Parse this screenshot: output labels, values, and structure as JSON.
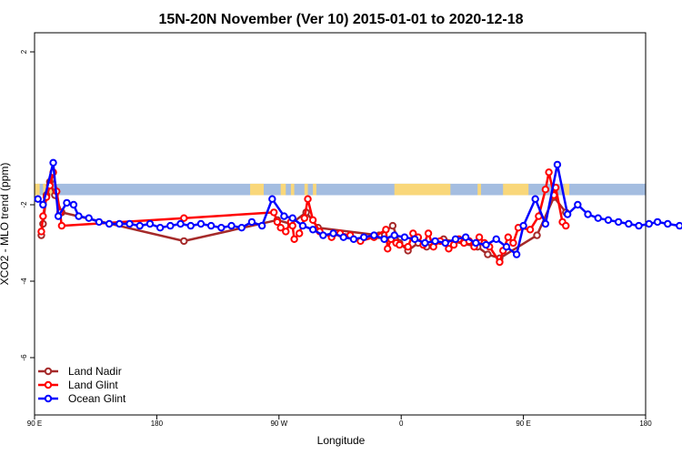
{
  "chart_data": {
    "type": "line",
    "title": "15N-20N November (Ver 10)   2015-01-01 to 2020-12-18",
    "xlabel": "Longitude",
    "ylabel": "XCO2 - MLO trend (ppm)",
    "xlim": [
      90,
      450
    ],
    "ylim": [
      -7.5,
      2.5
    ],
    "x_ticks": [
      {
        "value": 90,
        "label": "90 E"
      },
      {
        "value": 162,
        "label": "180"
      },
      {
        "value": 234,
        "label": "90 W"
      },
      {
        "value": 306,
        "label": "0"
      },
      {
        "value": 378,
        "label": "90 E"
      },
      {
        "value": 450,
        "label": "180"
      }
    ],
    "y_ticks": [
      {
        "value": 2,
        "label": "2"
      },
      {
        "value": -2,
        "label": "-2"
      },
      {
        "value": -4,
        "label": "-4"
      },
      {
        "value": -6,
        "label": "-6"
      }
    ],
    "grid": false,
    "background_band": {
      "y_range": [
        -1.75,
        -1.45
      ],
      "ocean_color": "#a4bde0",
      "land_color": "#f9d77a"
    },
    "land_segments": [
      [
        90,
        93
      ],
      [
        95,
        97
      ],
      [
        99,
        101
      ],
      [
        217,
        225
      ],
      [
        235,
        238
      ],
      [
        241,
        243
      ],
      [
        249,
        251
      ],
      [
        254,
        256
      ],
      [
        302,
        335
      ],
      [
        351,
        353
      ],
      [
        366,
        381
      ],
      [
        402,
        405
      ]
    ],
    "legend": {
      "position": "bottom-left"
    },
    "series": [
      {
        "name": "Land Nadir",
        "color": "#a52a2a",
        "x": [
          94,
          95,
          97,
          99,
          102,
          106,
          178,
          233,
          241,
          250,
          257,
          293,
          301,
          305,
          310,
          316,
          321,
          331,
          351,
          357,
          364,
          386,
          396,
          403
        ],
        "y": [
          -2.8,
          -2.5,
          -1.75,
          -1.4,
          -1.75,
          -2.2,
          -2.95,
          -2.4,
          -2.5,
          -2.2,
          -2.6,
          -2.8,
          -2.55,
          -3.0,
          -3.2,
          -3.0,
          -3.1,
          -2.9,
          -3.1,
          -3.3,
          -3.4,
          -2.8,
          -1.8,
          -2.2
        ]
      },
      {
        "name": "Land Glint",
        "color": "#ff0000",
        "x": [
          94,
          95,
          97,
          99,
          101,
          103,
          105,
          106,
          178,
          231,
          233,
          235,
          238,
          241,
          242,
          243,
          246,
          249,
          251,
          254,
          258,
          265,
          270,
          276,
          282,
          290,
          297,
          298,
          300,
          303,
          305,
          310,
          313,
          316,
          319,
          322,
          325,
          329,
          334,
          337,
          340,
          343,
          346,
          349,
          352,
          355,
          358,
          364,
          366,
          369,
          372,
          375,
          382,
          387,
          391,
          393,
          396,
          397,
          401,
          403
        ],
        "y": [
          -2.7,
          -2.3,
          -1.8,
          -1.5,
          -1.15,
          -1.65,
          -2.2,
          -2.55,
          -2.35,
          -2.2,
          -2.45,
          -2.6,
          -2.7,
          -2.45,
          -2.55,
          -2.9,
          -2.75,
          -2.35,
          -1.85,
          -2.4,
          -2.7,
          -2.85,
          -2.75,
          -2.8,
          -2.95,
          -2.85,
          -2.65,
          -3.15,
          -2.9,
          -3.0,
          -3.05,
          -3.1,
          -2.75,
          -2.85,
          -3.05,
          -2.75,
          -3.1,
          -2.95,
          -3.15,
          -3.05,
          -2.9,
          -3.0,
          -2.95,
          -3.1,
          -2.85,
          -3.0,
          -3.1,
          -3.5,
          -3.2,
          -2.85,
          -3.0,
          -2.6,
          -2.65,
          -2.3,
          -1.6,
          -1.15,
          -1.75,
          -1.55,
          -2.45,
          -2.55
        ]
      },
      {
        "name": "Ocean Glint",
        "color": "#0000ff",
        "x": [
          92,
          95,
          101,
          104,
          109,
          113,
          116,
          122,
          128,
          134,
          140,
          146,
          152,
          158,
          164,
          170,
          176,
          182,
          188,
          194,
          200,
          206,
          212,
          218,
          224,
          230,
          237,
          242,
          248,
          254,
          260,
          266,
          272,
          278,
          284,
          290,
          296,
          302,
          308,
          314,
          320,
          326,
          332,
          338,
          344,
          350,
          356,
          362,
          368,
          374,
          378,
          385,
          391,
          398,
          404,
          410,
          416,
          422,
          428,
          434,
          440,
          446,
          452,
          457,
          463,
          470
        ],
        "y": [
          -1.85,
          -2.0,
          -0.9,
          -2.3,
          -1.95,
          -2.0,
          -2.3,
          -2.35,
          -2.45,
          -2.5,
          -2.5,
          -2.5,
          -2.55,
          -2.5,
          -2.6,
          -2.55,
          -2.5,
          -2.55,
          -2.5,
          -2.55,
          -2.6,
          -2.55,
          -2.6,
          -2.45,
          -2.55,
          -1.85,
          -2.3,
          -2.35,
          -2.55,
          -2.65,
          -2.8,
          -2.75,
          -2.85,
          -2.9,
          -2.85,
          -2.8,
          -2.9,
          -2.8,
          -2.85,
          -2.9,
          -3.0,
          -2.95,
          -3.0,
          -2.9,
          -2.85,
          -3.0,
          -3.05,
          -2.9,
          -3.1,
          -3.3,
          -2.55,
          -1.85,
          -2.5,
          -0.95,
          -2.25,
          -2.0,
          -2.25,
          -2.35,
          -2.4,
          -2.45,
          -2.5,
          -2.55,
          -2.5,
          -2.45,
          -2.5,
          -2.55
        ]
      }
    ]
  }
}
